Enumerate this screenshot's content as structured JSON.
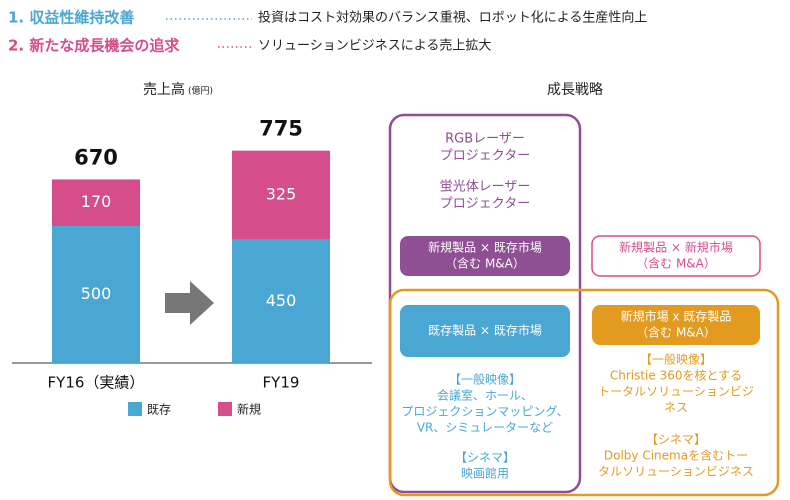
{
  "header": {
    "items": [
      {
        "label": "1. 収益性維持改善",
        "text": "投資はコスト対効果のバランス重視、ロボット化による生産性向上"
      },
      {
        "label": "2. 新たな成長機会の追求",
        "text": "ソリューションビジネスによる売上拡大"
      }
    ]
  },
  "chart_data": {
    "type": "stacked-bar",
    "title": "売上高",
    "unit": "(億円)",
    "categories": [
      "FY16（実績）",
      "FY19"
    ],
    "series": [
      {
        "name": "既存",
        "color": "#4aa7d4",
        "values": [
          500,
          450
        ]
      },
      {
        "name": "新規",
        "color": "#d64d8b",
        "values": [
          170,
          325
        ]
      }
    ],
    "totals": [
      670,
      775
    ]
  },
  "strategy": {
    "title": "成長戦略",
    "purple_texts": [
      [
        "RGBレーザー",
        "プロジェクター"
      ],
      [
        "蛍光体レーザー",
        "プロジェクター"
      ]
    ],
    "boxes": [
      [
        "新規製品 × 既存市場",
        "（含む M&A）"
      ],
      [
        "新規製品 × 新規市場",
        "（含む M&A）"
      ],
      [
        "既存製品 × 既存市場"
      ],
      [
        "新規市場 x 既存製品",
        "（含む M&A）"
      ]
    ],
    "existing_notes": [
      "【一般映像】",
      "会議室、ホール、",
      "プロジェクションマッピング、",
      "VR、シミュレーターなど",
      "【シネマ】",
      "映画館用"
    ],
    "new_notes": [
      "【一般映像】",
      "Christie 360を核とする",
      "トータルソリューションビジ",
      "ネス",
      "【シネマ】",
      "Dolby Cinemaを含むトー",
      "タルソリューションビジネス"
    ]
  }
}
